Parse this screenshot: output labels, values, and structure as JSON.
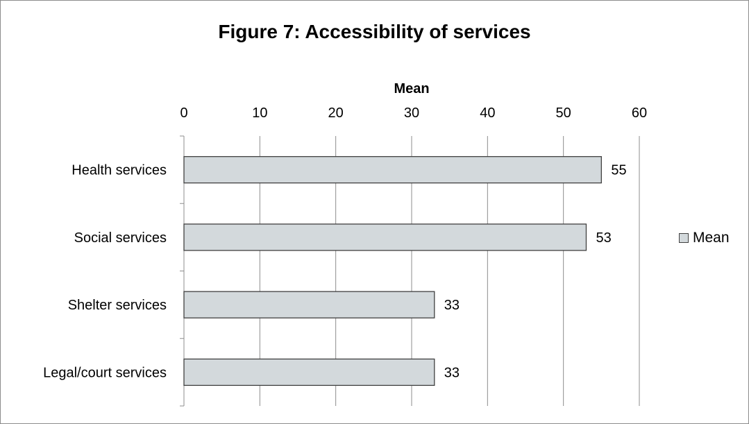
{
  "chart_data": {
    "type": "bar",
    "orientation": "horizontal",
    "title": "Figure 7: Accessibility of services",
    "xlabel": "Mean",
    "ylabel": "",
    "categories": [
      "Health services",
      "Social services",
      "Shelter services",
      "Legal/court services"
    ],
    "series": [
      {
        "name": "Mean",
        "values": [
          55,
          53,
          33,
          33
        ]
      }
    ],
    "data_labels": [
      "55",
      "53",
      "33",
      "33"
    ],
    "xlim": [
      0,
      60
    ],
    "xticks": [
      "0",
      "10",
      "20",
      "30",
      "40",
      "50",
      "60"
    ],
    "x_axis_position": "top",
    "grid": true,
    "legend_position": "right",
    "colors": {
      "bar_fill": "#d3d9dc",
      "bar_stroke": "#404040",
      "grid": "#8c8c8c"
    }
  }
}
